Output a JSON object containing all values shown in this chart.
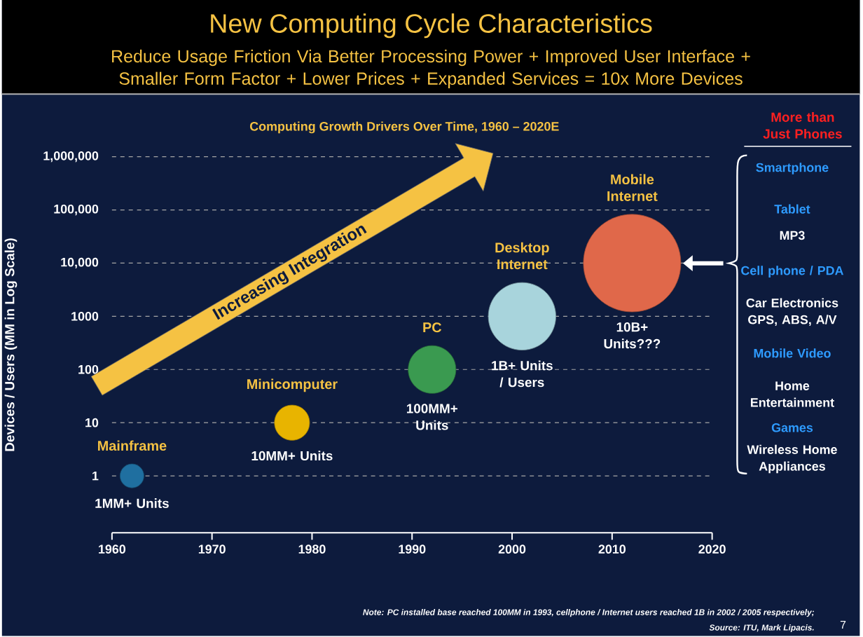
{
  "chart_data": {
    "type": "bubble",
    "title": "New Computing Cycle Characteristics",
    "subtitle": "Reduce Usage Friction Via Better Processing Power + Improved User Interface + Smaller Form Factor + Lower Prices + Expanded Services = 10x More Devices",
    "ylabel": "Devices / Users (MM in Log Scale)",
    "x": [
      1962,
      1978,
      1992,
      2001,
      2012
    ],
    "values": [
      1,
      10,
      100,
      1000,
      10000
    ],
    "sizes": [
      0.06,
      0.13,
      0.24,
      0.48,
      1
    ],
    "colors": [
      "#1f6fa0",
      "#e8b400",
      "#3a9a50",
      "#a8d4dc",
      "#e0684a"
    ],
    "xlim": [
      1960,
      2020
    ],
    "xticks": [
      1960,
      1970,
      1980,
      1990,
      2000,
      2010,
      2020
    ],
    "ylim": [
      0.085,
      1000000
    ],
    "yticks": [
      1,
      10,
      100,
      1000,
      {
        "value": 10000,
        "label": "10,000"
      },
      {
        "value": 100000,
        "label": "100,000"
      },
      {
        "value": 1000000,
        "label": "1,000,000"
      }
    ],
    "log": "y",
    "grid": "y",
    "annotations": [
      "Mainframe",
      "Minicomputer",
      "PC",
      "Desktop Internet",
      "Mobile Internet",
      "1MM+ Units",
      "10MM+ Units",
      "100MM+ Units",
      "1B+ Units / Users",
      "10B+ Units???",
      "Increasing Integration",
      "Computing Growth Drivers Over Time, 1960 – 2020E",
      "More than Just Phones",
      "Smartphone",
      "Tablet",
      "MP3",
      "Cell phone / PDA",
      "Car Electronics GPS, ABS, A/V",
      "Mobile Video",
      "Home Entertainment",
      "Games",
      "Wireless Home Appliances",
      "Note: PC installed base reached 100MM in 1993, cellphone / Internet users reached 1B in 2002 / 2005 respectively;",
      "Source: ITU, Mark Lipacis.",
      "7"
    ]
  }
}
